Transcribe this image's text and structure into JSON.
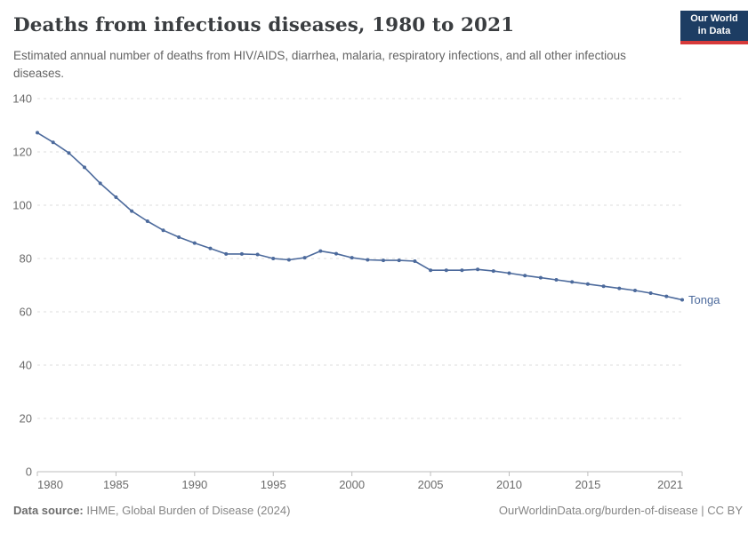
{
  "header": {
    "title": "Deaths from infectious diseases, 1980 to 2021",
    "subtitle": "Estimated annual number of deaths from HIV/AIDS, diarrhea, malaria, respiratory infections, and all other infectious diseases.",
    "logo": {
      "line1": "Our World",
      "line2": "in Data",
      "bg_color": "#1d3d63",
      "accent_color": "#d73a3a"
    }
  },
  "chart_data": {
    "type": "line",
    "title": "Deaths from infectious diseases, 1980 to 2021",
    "xlabel": "",
    "ylabel": "",
    "xlim": [
      1980,
      2021
    ],
    "ylim": [
      0,
      140
    ],
    "yticks": [
      0,
      20,
      40,
      60,
      80,
      100,
      120,
      140
    ],
    "xticks": [
      1980,
      1985,
      1990,
      1995,
      2000,
      2005,
      2010,
      2015,
      2021
    ],
    "grid": "horizontal-dashed",
    "legend_position": "end-of-line-label",
    "colors": {
      "line": "#4c6a9c",
      "grid": "#dedede",
      "axis": "#bdbdbd",
      "tick_text": "#6b6b6b"
    },
    "series": [
      {
        "name": "Tonga",
        "color": "#4c6a9c",
        "x": [
          1980,
          1981,
          1982,
          1983,
          1984,
          1985,
          1986,
          1987,
          1988,
          1989,
          1990,
          1991,
          1992,
          1993,
          1994,
          1995,
          1996,
          1997,
          1998,
          1999,
          2000,
          2001,
          2002,
          2003,
          2004,
          2005,
          2006,
          2007,
          2008,
          2009,
          2010,
          2011,
          2012,
          2013,
          2014,
          2015,
          2016,
          2017,
          2018,
          2019,
          2020,
          2021
        ],
        "values": [
          127.2,
          123.6,
          119.6,
          114.2,
          108.2,
          103.0,
          97.8,
          94.0,
          90.6,
          88.0,
          85.8,
          83.8,
          81.7,
          81.7,
          81.5,
          80.0,
          79.5,
          80.3,
          82.8,
          81.8,
          80.3,
          79.5,
          79.3,
          79.3,
          79.0,
          75.6,
          75.6,
          75.6,
          75.9,
          75.3,
          74.5,
          73.6,
          72.8,
          72.0,
          71.2,
          70.4,
          69.6,
          68.8,
          68.0,
          67.0,
          65.8,
          64.5
        ]
      }
    ]
  },
  "footer": {
    "source_label": "Data source:",
    "source_text": " IHME, Global Burden of Disease (2024)",
    "link_text": "OurWorldinData.org/burden-of-disease | CC BY"
  }
}
